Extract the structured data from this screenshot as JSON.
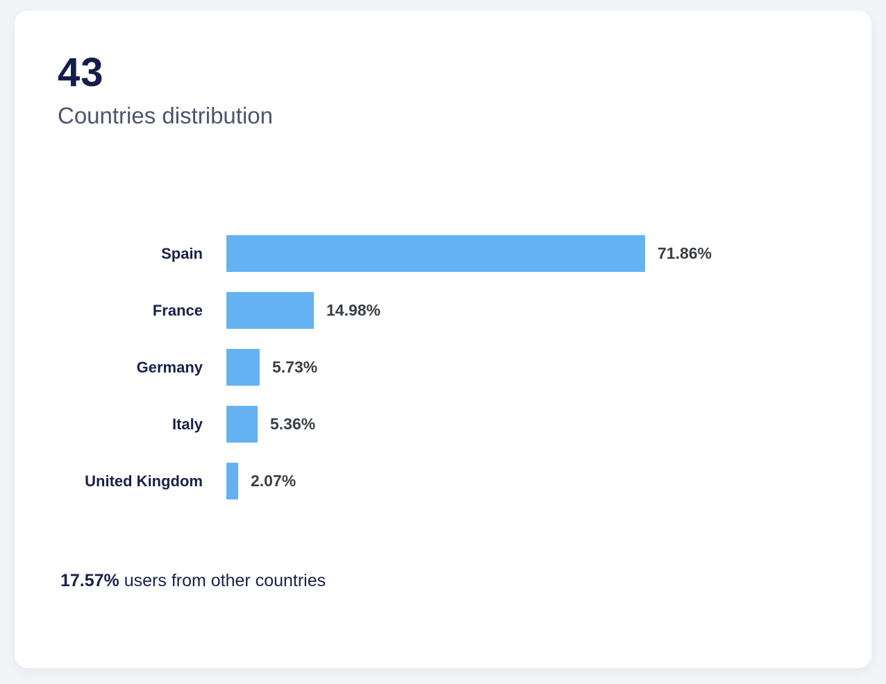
{
  "page": {
    "background_color": "#F2F4F8"
  },
  "card": {
    "count": "43",
    "title": "Countries distribution",
    "footer": {
      "highlight": "17.57%",
      "rest": " users from other countries"
    }
  },
  "chart_data": {
    "type": "bar",
    "orientation": "horizontal",
    "title": "Countries distribution",
    "categories": [
      "Spain",
      "France",
      "Germany",
      "Italy",
      "United Kingdom"
    ],
    "values": [
      71.86,
      14.98,
      5.73,
      5.36,
      2.07
    ],
    "value_labels": [
      "71.86%",
      "14.98%",
      "5.73%",
      "5.36%",
      "2.07%"
    ],
    "other_countries_percent": 17.57,
    "bar_color": "#64B2F2",
    "xlim": [
      0,
      71.86
    ],
    "grid": false,
    "legend": false,
    "value_label_position": "right-of-bar"
  }
}
